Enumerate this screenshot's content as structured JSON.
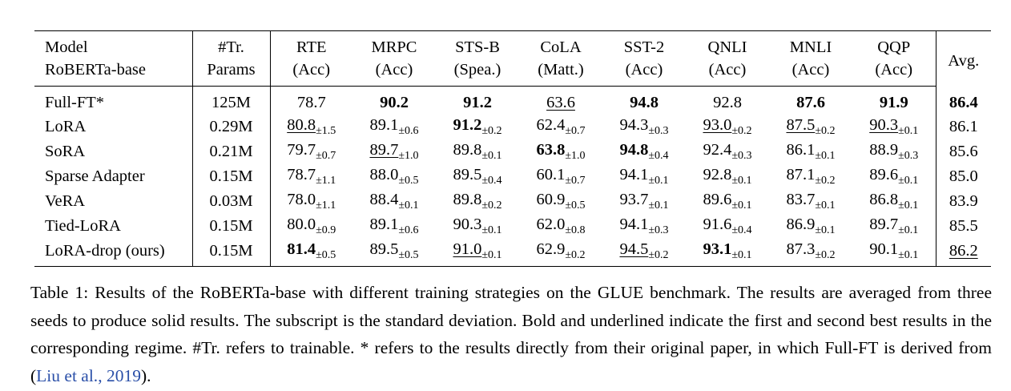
{
  "table": {
    "header": {
      "model_line1": "Model",
      "model_line2": "RoBERTa-base",
      "params_line1": "#Tr.",
      "params_line2": "Params",
      "columns": [
        {
          "name": "RTE",
          "metric": "(Acc)"
        },
        {
          "name": "MRPC",
          "metric": "(Acc)"
        },
        {
          "name": "STS-B",
          "metric": "(Spea.)"
        },
        {
          "name": "CoLA",
          "metric": "(Matt.)"
        },
        {
          "name": "SST-2",
          "metric": "(Acc)"
        },
        {
          "name": "QNLI",
          "metric": "(Acc)"
        },
        {
          "name": "MNLI",
          "metric": "(Acc)"
        },
        {
          "name": "QQP",
          "metric": "(Acc)"
        }
      ],
      "avg": "Avg."
    },
    "rows": [
      {
        "model": "Full-FT*",
        "params": "125M",
        "cells": [
          {
            "v": "78.7",
            "sd": "",
            "bold": false,
            "ul": false
          },
          {
            "v": "90.2",
            "sd": "",
            "bold": true,
            "ul": false
          },
          {
            "v": "91.2",
            "sd": "",
            "bold": true,
            "ul": false
          },
          {
            "v": "63.6",
            "sd": "",
            "bold": false,
            "ul": true
          },
          {
            "v": "94.8",
            "sd": "",
            "bold": true,
            "ul": false
          },
          {
            "v": "92.8",
            "sd": "",
            "bold": false,
            "ul": false
          },
          {
            "v": "87.6",
            "sd": "",
            "bold": true,
            "ul": false
          },
          {
            "v": "91.9",
            "sd": "",
            "bold": true,
            "ul": false
          }
        ],
        "avg": {
          "v": "86.4",
          "bold": true,
          "ul": false
        }
      },
      {
        "model": "LoRA",
        "params": "0.29M",
        "cells": [
          {
            "v": "80.8",
            "sd": "±1.5",
            "bold": false,
            "ul": true
          },
          {
            "v": "89.1",
            "sd": "±0.6",
            "bold": false,
            "ul": false
          },
          {
            "v": "91.2",
            "sd": "±0.2",
            "bold": true,
            "ul": false
          },
          {
            "v": "62.4",
            "sd": "±0.7",
            "bold": false,
            "ul": false
          },
          {
            "v": "94.3",
            "sd": "±0.3",
            "bold": false,
            "ul": false
          },
          {
            "v": "93.0",
            "sd": "±0.2",
            "bold": false,
            "ul": true
          },
          {
            "v": "87.5",
            "sd": "±0.2",
            "bold": false,
            "ul": true
          },
          {
            "v": "90.3",
            "sd": "±0.1",
            "bold": false,
            "ul": true
          }
        ],
        "avg": {
          "v": "86.1",
          "bold": false,
          "ul": false
        }
      },
      {
        "model": "SoRA",
        "params": "0.21M",
        "cells": [
          {
            "v": "79.7",
            "sd": "±0.7",
            "bold": false,
            "ul": false
          },
          {
            "v": "89.7",
            "sd": "±1.0",
            "bold": false,
            "ul": true
          },
          {
            "v": "89.8",
            "sd": "±0.1",
            "bold": false,
            "ul": false
          },
          {
            "v": "63.8",
            "sd": "±1.0",
            "bold": true,
            "ul": false
          },
          {
            "v": "94.8",
            "sd": "±0.4",
            "bold": true,
            "ul": false
          },
          {
            "v": "92.4",
            "sd": "±0.3",
            "bold": false,
            "ul": false
          },
          {
            "v": "86.1",
            "sd": "±0.1",
            "bold": false,
            "ul": false
          },
          {
            "v": "88.9",
            "sd": "±0.3",
            "bold": false,
            "ul": false
          }
        ],
        "avg": {
          "v": "85.6",
          "bold": false,
          "ul": false
        }
      },
      {
        "model": "Sparse Adapter",
        "params": "0.15M",
        "cells": [
          {
            "v": "78.7",
            "sd": "±1.1",
            "bold": false,
            "ul": false
          },
          {
            "v": "88.0",
            "sd": "±0.5",
            "bold": false,
            "ul": false
          },
          {
            "v": "89.5",
            "sd": "±0.4",
            "bold": false,
            "ul": false
          },
          {
            "v": "60.1",
            "sd": "±0.7",
            "bold": false,
            "ul": false
          },
          {
            "v": "94.1",
            "sd": "±0.1",
            "bold": false,
            "ul": false
          },
          {
            "v": "92.8",
            "sd": "±0.1",
            "bold": false,
            "ul": false
          },
          {
            "v": "87.1",
            "sd": "±0.2",
            "bold": false,
            "ul": false
          },
          {
            "v": "89.6",
            "sd": "±0.1",
            "bold": false,
            "ul": false
          }
        ],
        "avg": {
          "v": "85.0",
          "bold": false,
          "ul": false
        }
      },
      {
        "model": "VeRA",
        "params": "0.03M",
        "cells": [
          {
            "v": "78.0",
            "sd": "±1.1",
            "bold": false,
            "ul": false
          },
          {
            "v": "88.4",
            "sd": "±0.1",
            "bold": false,
            "ul": false
          },
          {
            "v": "89.8",
            "sd": "±0.2",
            "bold": false,
            "ul": false
          },
          {
            "v": "60.9",
            "sd": "±0.5",
            "bold": false,
            "ul": false
          },
          {
            "v": "93.7",
            "sd": "±0.1",
            "bold": false,
            "ul": false
          },
          {
            "v": "89.6",
            "sd": "±0.1",
            "bold": false,
            "ul": false
          },
          {
            "v": "83.7",
            "sd": "±0.1",
            "bold": false,
            "ul": false
          },
          {
            "v": "86.8",
            "sd": "±0.1",
            "bold": false,
            "ul": false
          }
        ],
        "avg": {
          "v": "83.9",
          "bold": false,
          "ul": false
        }
      },
      {
        "model": "Tied-LoRA",
        "params": "0.15M",
        "cells": [
          {
            "v": "80.0",
            "sd": "±0.9",
            "bold": false,
            "ul": false
          },
          {
            "v": "89.1",
            "sd": "±0.6",
            "bold": false,
            "ul": false
          },
          {
            "v": "90.3",
            "sd": "±0.1",
            "bold": false,
            "ul": false
          },
          {
            "v": "62.0",
            "sd": "±0.8",
            "bold": false,
            "ul": false
          },
          {
            "v": "94.1",
            "sd": "±0.3",
            "bold": false,
            "ul": false
          },
          {
            "v": "91.6",
            "sd": "±0.4",
            "bold": false,
            "ul": false
          },
          {
            "v": "86.9",
            "sd": "±0.1",
            "bold": false,
            "ul": false
          },
          {
            "v": "89.7",
            "sd": "±0.1",
            "bold": false,
            "ul": false
          }
        ],
        "avg": {
          "v": "85.5",
          "bold": false,
          "ul": false
        }
      },
      {
        "model": "LoRA-drop (ours)",
        "params": "0.15M",
        "cells": [
          {
            "v": "81.4",
            "sd": "±0.5",
            "bold": true,
            "ul": false
          },
          {
            "v": "89.5",
            "sd": "±0.5",
            "bold": false,
            "ul": false
          },
          {
            "v": "91.0",
            "sd": "±0.1",
            "bold": false,
            "ul": true
          },
          {
            "v": "62.9",
            "sd": "±0.2",
            "bold": false,
            "ul": false
          },
          {
            "v": "94.5",
            "sd": "±0.2",
            "bold": false,
            "ul": true
          },
          {
            "v": "93.1",
            "sd": "±0.1",
            "bold": true,
            "ul": false
          },
          {
            "v": "87.3",
            "sd": "±0.2",
            "bold": false,
            "ul": false
          },
          {
            "v": "90.1",
            "sd": "±0.1",
            "bold": false,
            "ul": false
          }
        ],
        "avg": {
          "v": "86.2",
          "bold": false,
          "ul": true
        }
      }
    ]
  },
  "caption": {
    "text": "Table 1: Results of the RoBERTa-base with different training strategies on the GLUE benchmark. The results are averaged from three seeds to produce solid results. The subscript is the standard deviation. Bold and underlined indicate the first and second best results in the corresponding regime. #Tr. refers to trainable. * refers to the results directly from their original paper, in which Full-FT is derived from ",
    "citation_author": "Liu et al.",
    "citation_sep": ", ",
    "citation_year": "2019",
    "open_paren": "(",
    "close_paren": ")."
  }
}
